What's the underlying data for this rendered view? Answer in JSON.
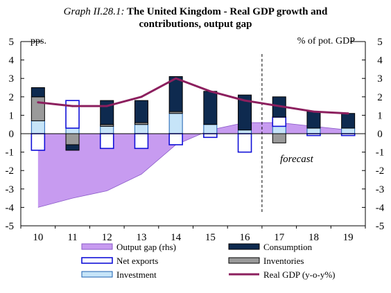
{
  "title": {
    "prefix": "Graph II.28.1:",
    "line1": "The United Kingdom - Real GDP growth and",
    "line2": "contributions, output gap"
  },
  "chart_data": {
    "type": "bar",
    "title": "The United Kingdom - Real GDP growth and contributions, output gap",
    "categories": [
      "10",
      "11",
      "12",
      "13",
      "14",
      "15",
      "16",
      "17",
      "18",
      "19"
    ],
    "left_axis_label": "pps.",
    "right_axis_label": "% of pot. GDP",
    "ylim": [
      -5,
      5
    ],
    "y2lim": [
      -5,
      5
    ],
    "yticks": [
      -5,
      -4,
      -3,
      -2,
      -1,
      0,
      1,
      2,
      3,
      4,
      5
    ],
    "forecast_label": "forecast",
    "forecast_start_after": "16",
    "series": [
      {
        "name": "Consumption",
        "kind": "stack",
        "color": "#0e2a4f",
        "outline": "#000000",
        "values": [
          0.5,
          -0.3,
          1.3,
          1.2,
          1.9,
          1.8,
          1.9,
          1.1,
          0.9,
          0.8
        ]
      },
      {
        "name": "Net exports",
        "kind": "stack",
        "color": "#ffffff",
        "outline": "#1010d8",
        "values": [
          -0.9,
          1.5,
          -0.8,
          -0.8,
          -0.6,
          -0.2,
          -1.0,
          0.5,
          -0.1,
          -0.1
        ]
      },
      {
        "name": "Inventories",
        "kind": "stack",
        "color": "#9a9a9a",
        "outline": "#000000",
        "values": [
          1.3,
          -0.6,
          0.1,
          0.1,
          0.1,
          0.0,
          0.0,
          -0.5,
          0.0,
          0.0
        ]
      },
      {
        "name": "Investment",
        "kind": "stack",
        "color": "#c6e4f8",
        "outline": "#1a5fb0",
        "values": [
          0.7,
          0.3,
          0.4,
          0.5,
          1.1,
          0.5,
          0.2,
          0.4,
          0.3,
          0.3
        ]
      },
      {
        "name": "Output gap (rhs)",
        "kind": "area",
        "axis": "right",
        "color": "#c79bf0",
        "outline": "#8a5ac8",
        "values": [
          -4.0,
          -3.5,
          -3.1,
          -2.2,
          -0.6,
          0.2,
          0.6,
          0.6,
          0.4,
          0.2
        ]
      },
      {
        "name": "Real GDP (y-o-y%)",
        "kind": "line",
        "color": "#8c1f5e",
        "values": [
          1.7,
          1.5,
          1.5,
          2.0,
          3.0,
          2.3,
          1.8,
          1.5,
          1.2,
          1.1
        ]
      }
    ],
    "legend": {
      "placement": "bottom",
      "columns": 2
    }
  }
}
